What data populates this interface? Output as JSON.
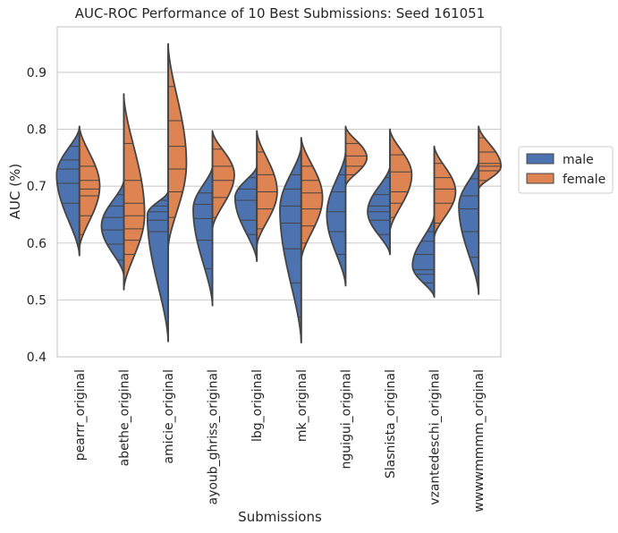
{
  "chart_data": {
    "type": "violin",
    "title": "AUC-ROC Performance of 10 Best Submissions: Seed 161051",
    "xlabel": "Submissions",
    "ylabel": "AUC (%)",
    "ylim": [
      0.4,
      0.98
    ],
    "yticks": [
      0.4,
      0.5,
      0.6,
      0.7,
      0.8,
      0.9
    ],
    "grid": true,
    "legend_position": "right",
    "split": true,
    "inner": "stick",
    "categories": [
      "pearrr_original",
      "abethe_original",
      "amicie_original",
      "ayoub_ghriss_original",
      "lbg_original",
      "mk_original",
      "nguigui_original",
      "Slasnista_original",
      "vzantedeschi_original",
      "wwwwmmmm_original"
    ],
    "series": [
      {
        "name": "male",
        "color": "#4c72b0",
        "violins": [
          {
            "min": 0.578,
            "mode": 0.72,
            "max": 0.803,
            "spread": 0.36,
            "sticks": [
              0.599,
              0.67,
              0.705,
              0.73,
              0.746,
              0.77
            ]
          },
          {
            "min": 0.543,
            "mode": 0.63,
            "max": 0.71,
            "spread": 0.34,
            "sticks": [
              0.57,
              0.598,
              0.623,
              0.645,
              0.665,
              0.685
            ]
          },
          {
            "min": 0.427,
            "mode": 0.65,
            "max": 0.69,
            "spread": 0.28,
            "sticks": [
              0.62,
              0.64,
              0.655,
              0.665,
              0.675
            ]
          },
          {
            "min": 0.49,
            "mode": 0.66,
            "max": 0.735,
            "spread": 0.22,
            "sticks": [
              0.515,
              0.555,
              0.605,
              0.643,
              0.668,
              0.688
            ]
          },
          {
            "min": 0.568,
            "mode": 0.68,
            "max": 0.735,
            "spread": 0.32,
            "sticks": [
              0.615,
              0.64,
              0.675,
              0.695,
              0.715
            ]
          },
          {
            "min": 0.425,
            "mode": 0.66,
            "max": 0.77,
            "spread": 0.3,
            "sticks": [
              0.47,
              0.53,
              0.59,
              0.635,
              0.665,
              0.695,
              0.72
            ]
          },
          {
            "min": 0.525,
            "mode": 0.65,
            "max": 0.76,
            "spread": 0.2,
            "sticks": [
              0.58,
              0.62,
              0.655,
              0.69,
              0.72
            ]
          },
          {
            "min": 0.58,
            "mode": 0.655,
            "max": 0.735,
            "spread": 0.34,
            "sticks": [
              0.615,
              0.64,
              0.655,
              0.665,
              0.685,
              0.715
            ]
          },
          {
            "min": 0.505,
            "mode": 0.56,
            "max": 0.65,
            "spread": 0.32,
            "sticks": [
              0.53,
              0.545,
              0.553,
              0.58,
              0.603,
              0.62
            ]
          },
          {
            "min": 0.51,
            "mode": 0.665,
            "max": 0.745,
            "spread": 0.24,
            "sticks": [
              0.54,
              0.575,
              0.62,
              0.66,
              0.683,
              0.713
            ]
          }
        ]
      },
      {
        "name": "female",
        "color": "#dd8452",
        "violins": [
          {
            "min": 0.59,
            "mode": 0.7,
            "max": 0.805,
            "spread": 0.26,
            "sticks": [
              0.615,
              0.648,
              0.683,
              0.695,
              0.71,
              0.735
            ]
          },
          {
            "min": 0.518,
            "mode": 0.65,
            "max": 0.862,
            "spread": 0.28,
            "sticks": [
              0.58,
              0.605,
              0.625,
              0.648,
              0.67,
              0.71,
              0.775
            ]
          },
          {
            "min": 0.59,
            "mode": 0.74,
            "max": 0.95,
            "spread": 0.18,
            "sticks": [
              0.645,
              0.69,
              0.73,
              0.77,
              0.815,
              0.875
            ]
          },
          {
            "min": 0.625,
            "mode": 0.72,
            "max": 0.797,
            "spread": 0.32,
            "sticks": [
              0.645,
              0.68,
              0.71,
              0.735,
              0.765
            ]
          },
          {
            "min": 0.595,
            "mode": 0.69,
            "max": 0.797,
            "spread": 0.26,
            "sticks": [
              0.625,
              0.66,
              0.69,
              0.72,
              0.76
            ]
          },
          {
            "min": 0.57,
            "mode": 0.68,
            "max": 0.785,
            "spread": 0.3,
            "sticks": [
              0.6,
              0.63,
              0.66,
              0.688,
              0.71,
              0.735
            ]
          },
          {
            "min": 0.7,
            "mode": 0.75,
            "max": 0.805,
            "spread": 0.3,
            "sticks": [
              0.72,
              0.735,
              0.753,
              0.775
            ]
          },
          {
            "min": 0.62,
            "mode": 0.72,
            "max": 0.8,
            "spread": 0.32,
            "sticks": [
              0.645,
              0.67,
              0.69,
              0.725,
              0.755
            ]
          },
          {
            "min": 0.61,
            "mode": 0.69,
            "max": 0.77,
            "spread": 0.3,
            "sticks": [
              0.635,
              0.67,
              0.695,
              0.715,
              0.74
            ]
          },
          {
            "min": 0.695,
            "mode": 0.735,
            "max": 0.805,
            "spread": 0.34,
            "sticks": [
              0.71,
              0.727,
              0.735,
              0.74,
              0.76,
              0.785
            ]
          }
        ]
      }
    ]
  }
}
